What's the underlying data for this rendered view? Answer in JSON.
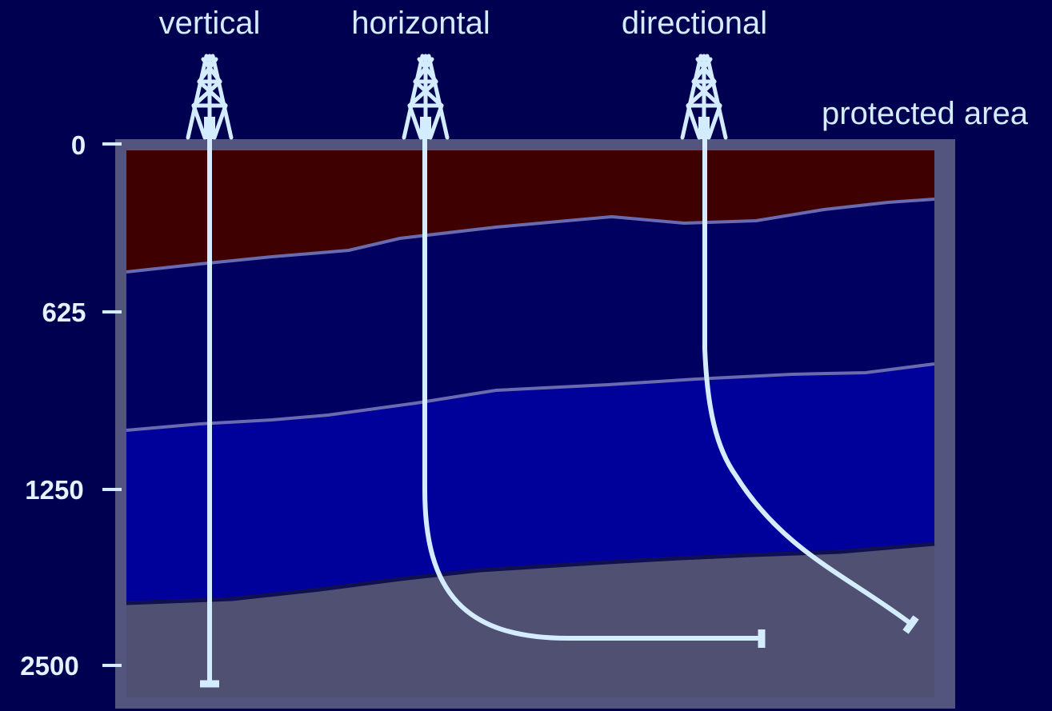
{
  "well_labels": {
    "vertical": "vertical",
    "horizontal": "horizontal",
    "directional": "directional"
  },
  "area_label": "protected area",
  "depth_axis": {
    "ticks": [
      "0",
      "625",
      "1250",
      "2500"
    ]
  },
  "colors": {
    "background": "#000050",
    "frame": "#54557e",
    "layer_top": "#3e0000",
    "layer_second": "#000060",
    "layer_third": "#00009a",
    "layer_bottom": "#4f5072",
    "boundary_line": "#6a6ab0",
    "well_line": "#d4ecff",
    "text": "#d4ecff"
  },
  "icons": {
    "rig": "drilling-rig-icon"
  }
}
